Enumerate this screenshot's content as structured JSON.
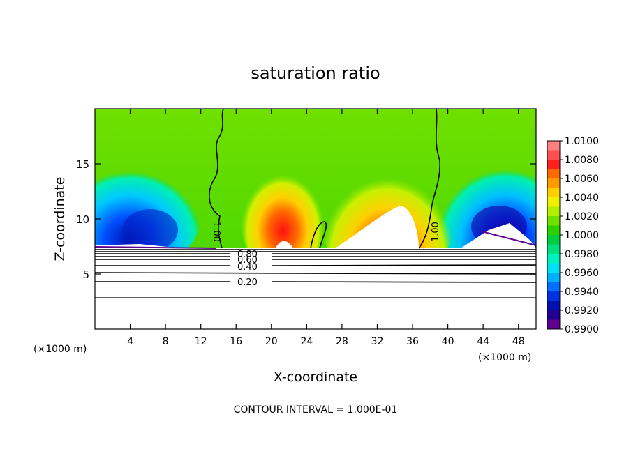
{
  "chart_data": {
    "type": "heatmap",
    "title": "saturation ratio",
    "xlabel": "X-coordinate",
    "ylabel": "Z-coordinate",
    "x_unit_left": "(×1000 m)",
    "x_unit_right": "(×1000 m)",
    "footer": "CONTOUR INTERVAL = 1.000E-01",
    "xlim": [
      0,
      50
    ],
    "ylim": [
      0,
      20
    ],
    "x_ticks": [
      4,
      8,
      12,
      16,
      20,
      24,
      28,
      32,
      36,
      40,
      44,
      48
    ],
    "y_ticks": [
      5,
      10,
      15
    ],
    "colorbar": {
      "levels": [
        "1.0100",
        "1.0080",
        "1.0060",
        "1.0040",
        "1.0020",
        "1.0000",
        "0.9980",
        "0.9960",
        "0.9940",
        "0.9920",
        "0.9900"
      ],
      "colors": [
        "#ff8080",
        "#ff5050",
        "#ff2020",
        "#ff6a00",
        "#ff9a00",
        "#ffd000",
        "#f0f000",
        "#b0f000",
        "#70e000",
        "#30d000",
        "#00d040",
        "#00e080",
        "#00f0c0",
        "#00e0f0",
        "#00b0ff",
        "#0070ff",
        "#0030e0",
        "#0010b0",
        "#200090",
        "#600090"
      ]
    },
    "contour_labels": [
      {
        "text": "1.00",
        "x": 14.0,
        "y": 10.2,
        "rotate": 90
      },
      {
        "text": "1.00",
        "x": 38.5,
        "y": 10.2,
        "rotate": -90
      },
      {
        "text": "0.80",
        "x": 17.3,
        "y": 6.7
      },
      {
        "text": "0.60",
        "x": 17.3,
        "y": 6.2
      },
      {
        "text": "0.40",
        "x": 17.3,
        "y": 5.3
      },
      {
        "text": "0.20",
        "x": 17.3,
        "y": 4.0
      }
    ],
    "contours_y": [
      7.1,
      6.9,
      6.7,
      6.4,
      6.2,
      5.6,
      5.1,
      4.4,
      2.9
    ]
  }
}
